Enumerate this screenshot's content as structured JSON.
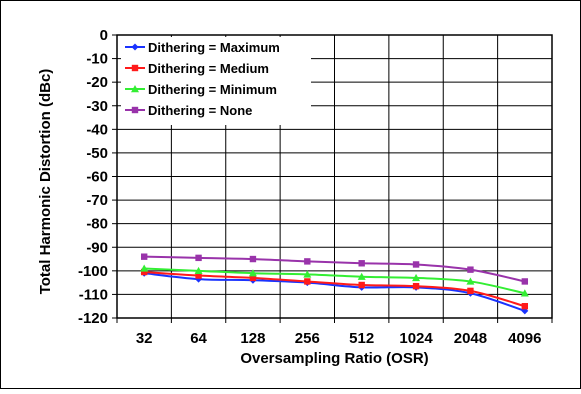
{
  "chart_data": {
    "type": "line",
    "title": "",
    "xlabel": "Oversampling Ratio (OSR)",
    "ylabel": "Total Harmonic Distortion (dBc)",
    "categories": [
      "32",
      "64",
      "128",
      "256",
      "512",
      "1024",
      "2048",
      "4096"
    ],
    "ylim": [
      -120,
      0
    ],
    "yticks": [
      0,
      -10,
      -20,
      -30,
      -40,
      -50,
      -60,
      -70,
      -80,
      -90,
      -100,
      -110,
      -120
    ],
    "grid": true,
    "legend_position": "top-left",
    "series": [
      {
        "name": "Dithering = Maximum",
        "color": "#1a33ff",
        "marker": "diamond",
        "values": [
          -101,
          -103.5,
          -104,
          -105,
          -107,
          -107,
          -109.5,
          -117
        ]
      },
      {
        "name": "Dithering = Medium",
        "color": "#ff1a1a",
        "marker": "square",
        "values": [
          -100.5,
          -102,
          -103,
          -104.5,
          -106,
          -106.5,
          -108.5,
          -115
        ]
      },
      {
        "name": "Dithering = Minimum",
        "color": "#33ee33",
        "marker": "triangle",
        "values": [
          -99,
          -100,
          -101,
          -101.5,
          -102.5,
          -103,
          -104.5,
          -109.5
        ]
      },
      {
        "name": "Dithering = None",
        "color": "#9933aa",
        "marker": "square",
        "values": [
          -94,
          -94.5,
          -95,
          -96,
          -96.8,
          -97.3,
          -99.5,
          -104.5
        ]
      }
    ]
  }
}
